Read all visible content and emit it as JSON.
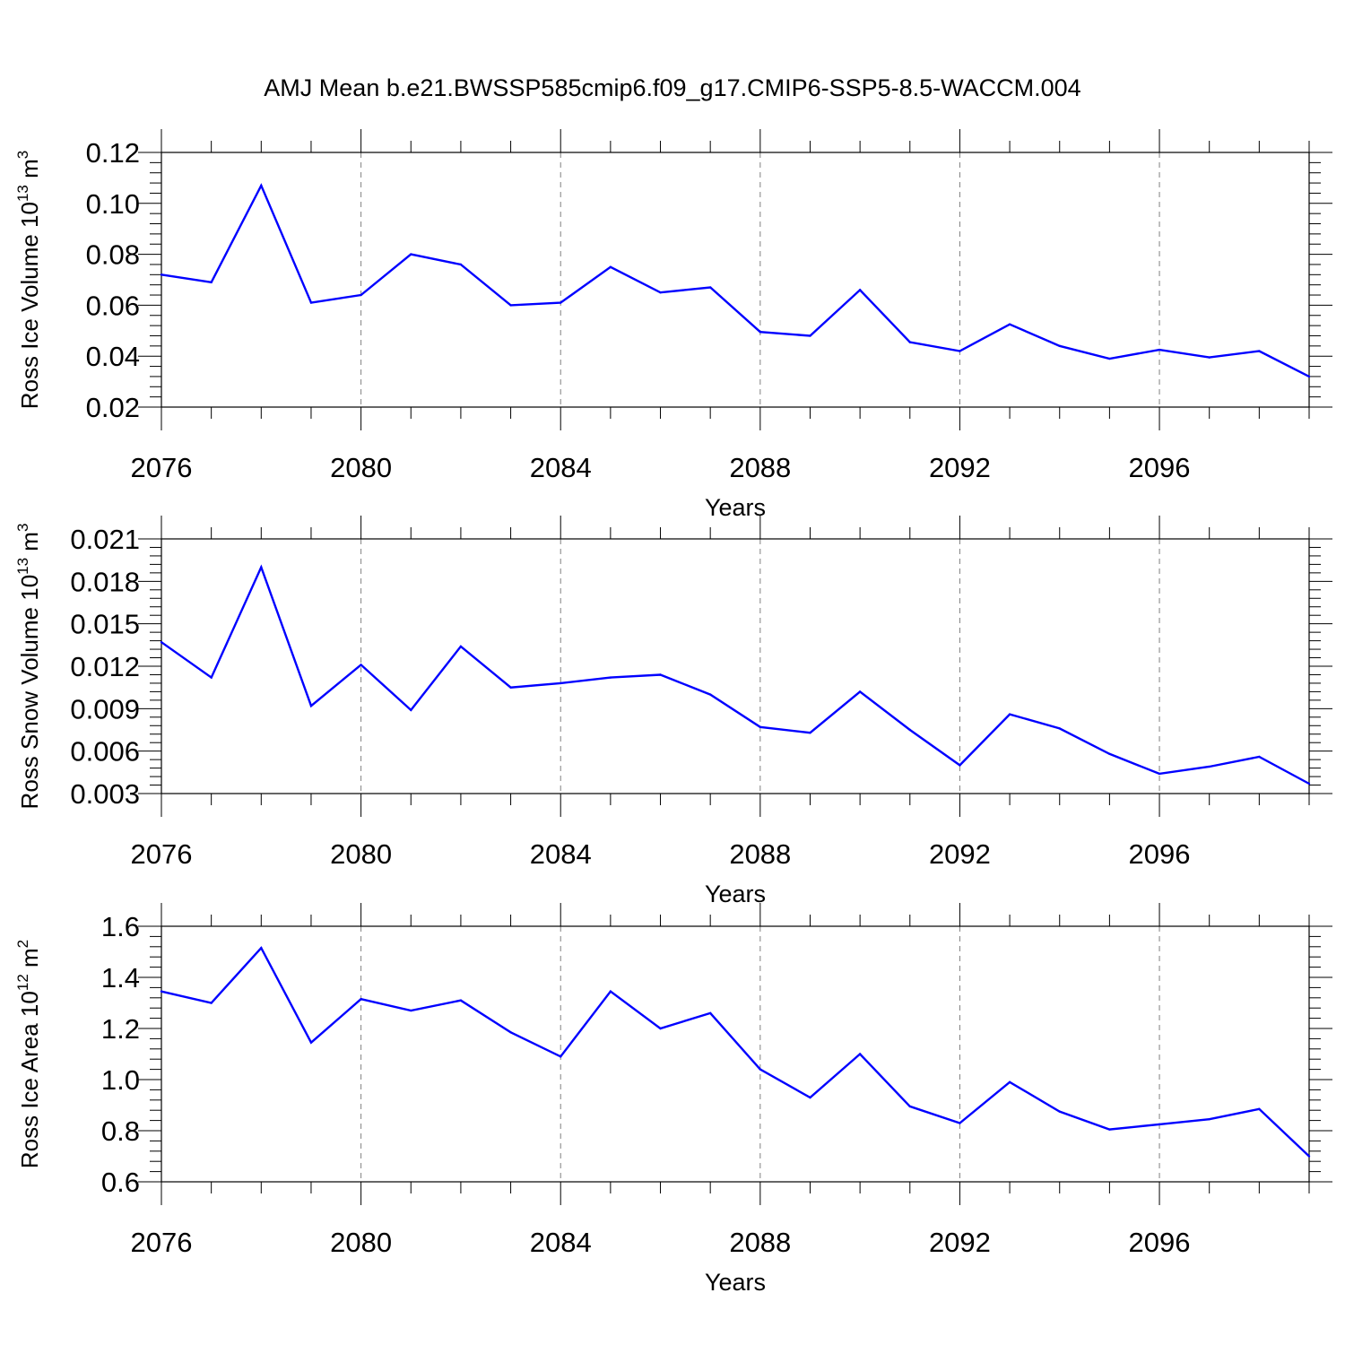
{
  "title": "AMJ Mean b.e21.BWSSP585cmip6.f09_g17.CMIP6-SSP5-8.5-WACCM.004",
  "colors": {
    "line": "#0000ff",
    "axis": "#000000",
    "grid": "#808080"
  },
  "chart_data": [
    {
      "type": "line",
      "ylabel": {
        "base": "Ross Ice Volume 10",
        "exp": "13",
        "unit": " m",
        "unit_exp": "3"
      },
      "xlabel": "Years",
      "xlim": [
        2076,
        2099
      ],
      "ylim": [
        0.02,
        0.12
      ],
      "x_ticks": [
        "2076",
        "2080",
        "2084",
        "2088",
        "2092",
        "2096"
      ],
      "y_ticks": [
        "0.02",
        "0.04",
        "0.06",
        "0.08",
        "0.10",
        "0.12"
      ],
      "grid": "vertical dashed",
      "x": [
        2076,
        2077,
        2078,
        2079,
        2080,
        2081,
        2082,
        2083,
        2084,
        2085,
        2086,
        2087,
        2088,
        2089,
        2090,
        2091,
        2092,
        2093,
        2094,
        2095,
        2096,
        2097,
        2098,
        2099
      ],
      "values": [
        0.072,
        0.069,
        0.107,
        0.061,
        0.064,
        0.08,
        0.076,
        0.06,
        0.061,
        0.075,
        0.065,
        0.067,
        0.0495,
        0.048,
        0.066,
        0.0455,
        0.042,
        0.0525,
        0.044,
        0.039,
        0.0425,
        0.0395,
        0.042,
        0.032
      ]
    },
    {
      "type": "line",
      "ylabel": {
        "base": "Ross Snow Volume 10",
        "exp": "13",
        "unit": " m",
        "unit_exp": "3"
      },
      "xlabel": "Years",
      "xlim": [
        2076,
        2099
      ],
      "ylim": [
        0.003,
        0.021
      ],
      "x_ticks": [
        "2076",
        "2080",
        "2084",
        "2088",
        "2092",
        "2096"
      ],
      "y_ticks": [
        "0.003",
        "0.006",
        "0.009",
        "0.012",
        "0.015",
        "0.018",
        "0.021"
      ],
      "grid": "vertical dashed",
      "x": [
        2076,
        2077,
        2078,
        2079,
        2080,
        2081,
        2082,
        2083,
        2084,
        2085,
        2086,
        2087,
        2088,
        2089,
        2090,
        2091,
        2092,
        2093,
        2094,
        2095,
        2096,
        2097,
        2098,
        2099
      ],
      "values": [
        0.0137,
        0.0112,
        0.019,
        0.0092,
        0.0121,
        0.0089,
        0.0134,
        0.0105,
        0.0108,
        0.0112,
        0.0114,
        0.01,
        0.0077,
        0.0073,
        0.0102,
        0.0075,
        0.005,
        0.0086,
        0.0076,
        0.0058,
        0.0044,
        0.0049,
        0.0056,
        0.0037
      ]
    },
    {
      "type": "line",
      "ylabel": {
        "base": "Ross Ice Area 10",
        "exp": "12",
        "unit": " m",
        "unit_exp": "2"
      },
      "xlabel": "Years",
      "xlim": [
        2076,
        2099
      ],
      "ylim": [
        0.6,
        1.6
      ],
      "x_ticks": [
        "2076",
        "2080",
        "2084",
        "2088",
        "2092",
        "2096"
      ],
      "y_ticks": [
        "0.6",
        "0.8",
        "1.0",
        "1.2",
        "1.4",
        "1.6"
      ],
      "grid": "vertical dashed",
      "x": [
        2076,
        2077,
        2078,
        2079,
        2080,
        2081,
        2082,
        2083,
        2084,
        2085,
        2086,
        2087,
        2088,
        2089,
        2090,
        2091,
        2092,
        2093,
        2094,
        2095,
        2096,
        2097,
        2098,
        2099
      ],
      "values": [
        1.345,
        1.3,
        1.515,
        1.145,
        1.315,
        1.27,
        1.31,
        1.185,
        1.09,
        1.345,
        1.2,
        1.26,
        1.04,
        0.93,
        1.1,
        0.895,
        0.83,
        0.99,
        0.875,
        0.805,
        0.825,
        0.845,
        0.885,
        0.7
      ]
    }
  ]
}
